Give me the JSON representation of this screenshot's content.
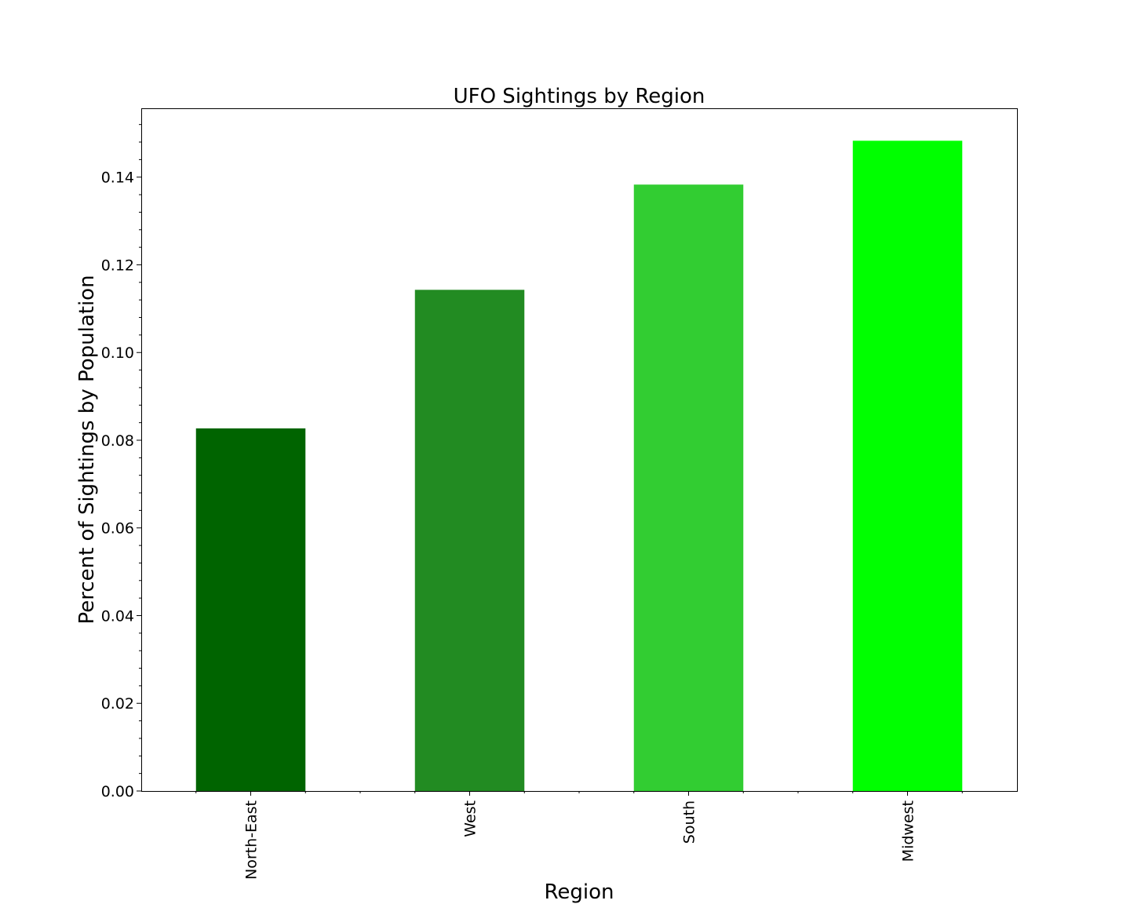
{
  "chart_data": {
    "type": "bar",
    "title": "UFO Sightings by Region",
    "xlabel": "Region",
    "ylabel": "Percent of Sightings by Population",
    "categories": [
      "North-East",
      "West",
      "South",
      "Midwest"
    ],
    "values": [
      0.0827,
      0.1143,
      0.1383,
      0.1483
    ],
    "colors": [
      "#006400",
      "#228b22",
      "#32cd32",
      "#00ff00"
    ],
    "ylim": [
      0,
      0.1557
    ],
    "yticks": [
      "0.00",
      "0.02",
      "0.04",
      "0.06",
      "0.08",
      "0.10",
      "0.12",
      "0.14"
    ],
    "ytick_values": [
      0,
      0.02,
      0.04,
      0.06,
      0.08,
      0.1,
      0.12,
      0.14
    ],
    "grid": false,
    "legend": "none"
  }
}
